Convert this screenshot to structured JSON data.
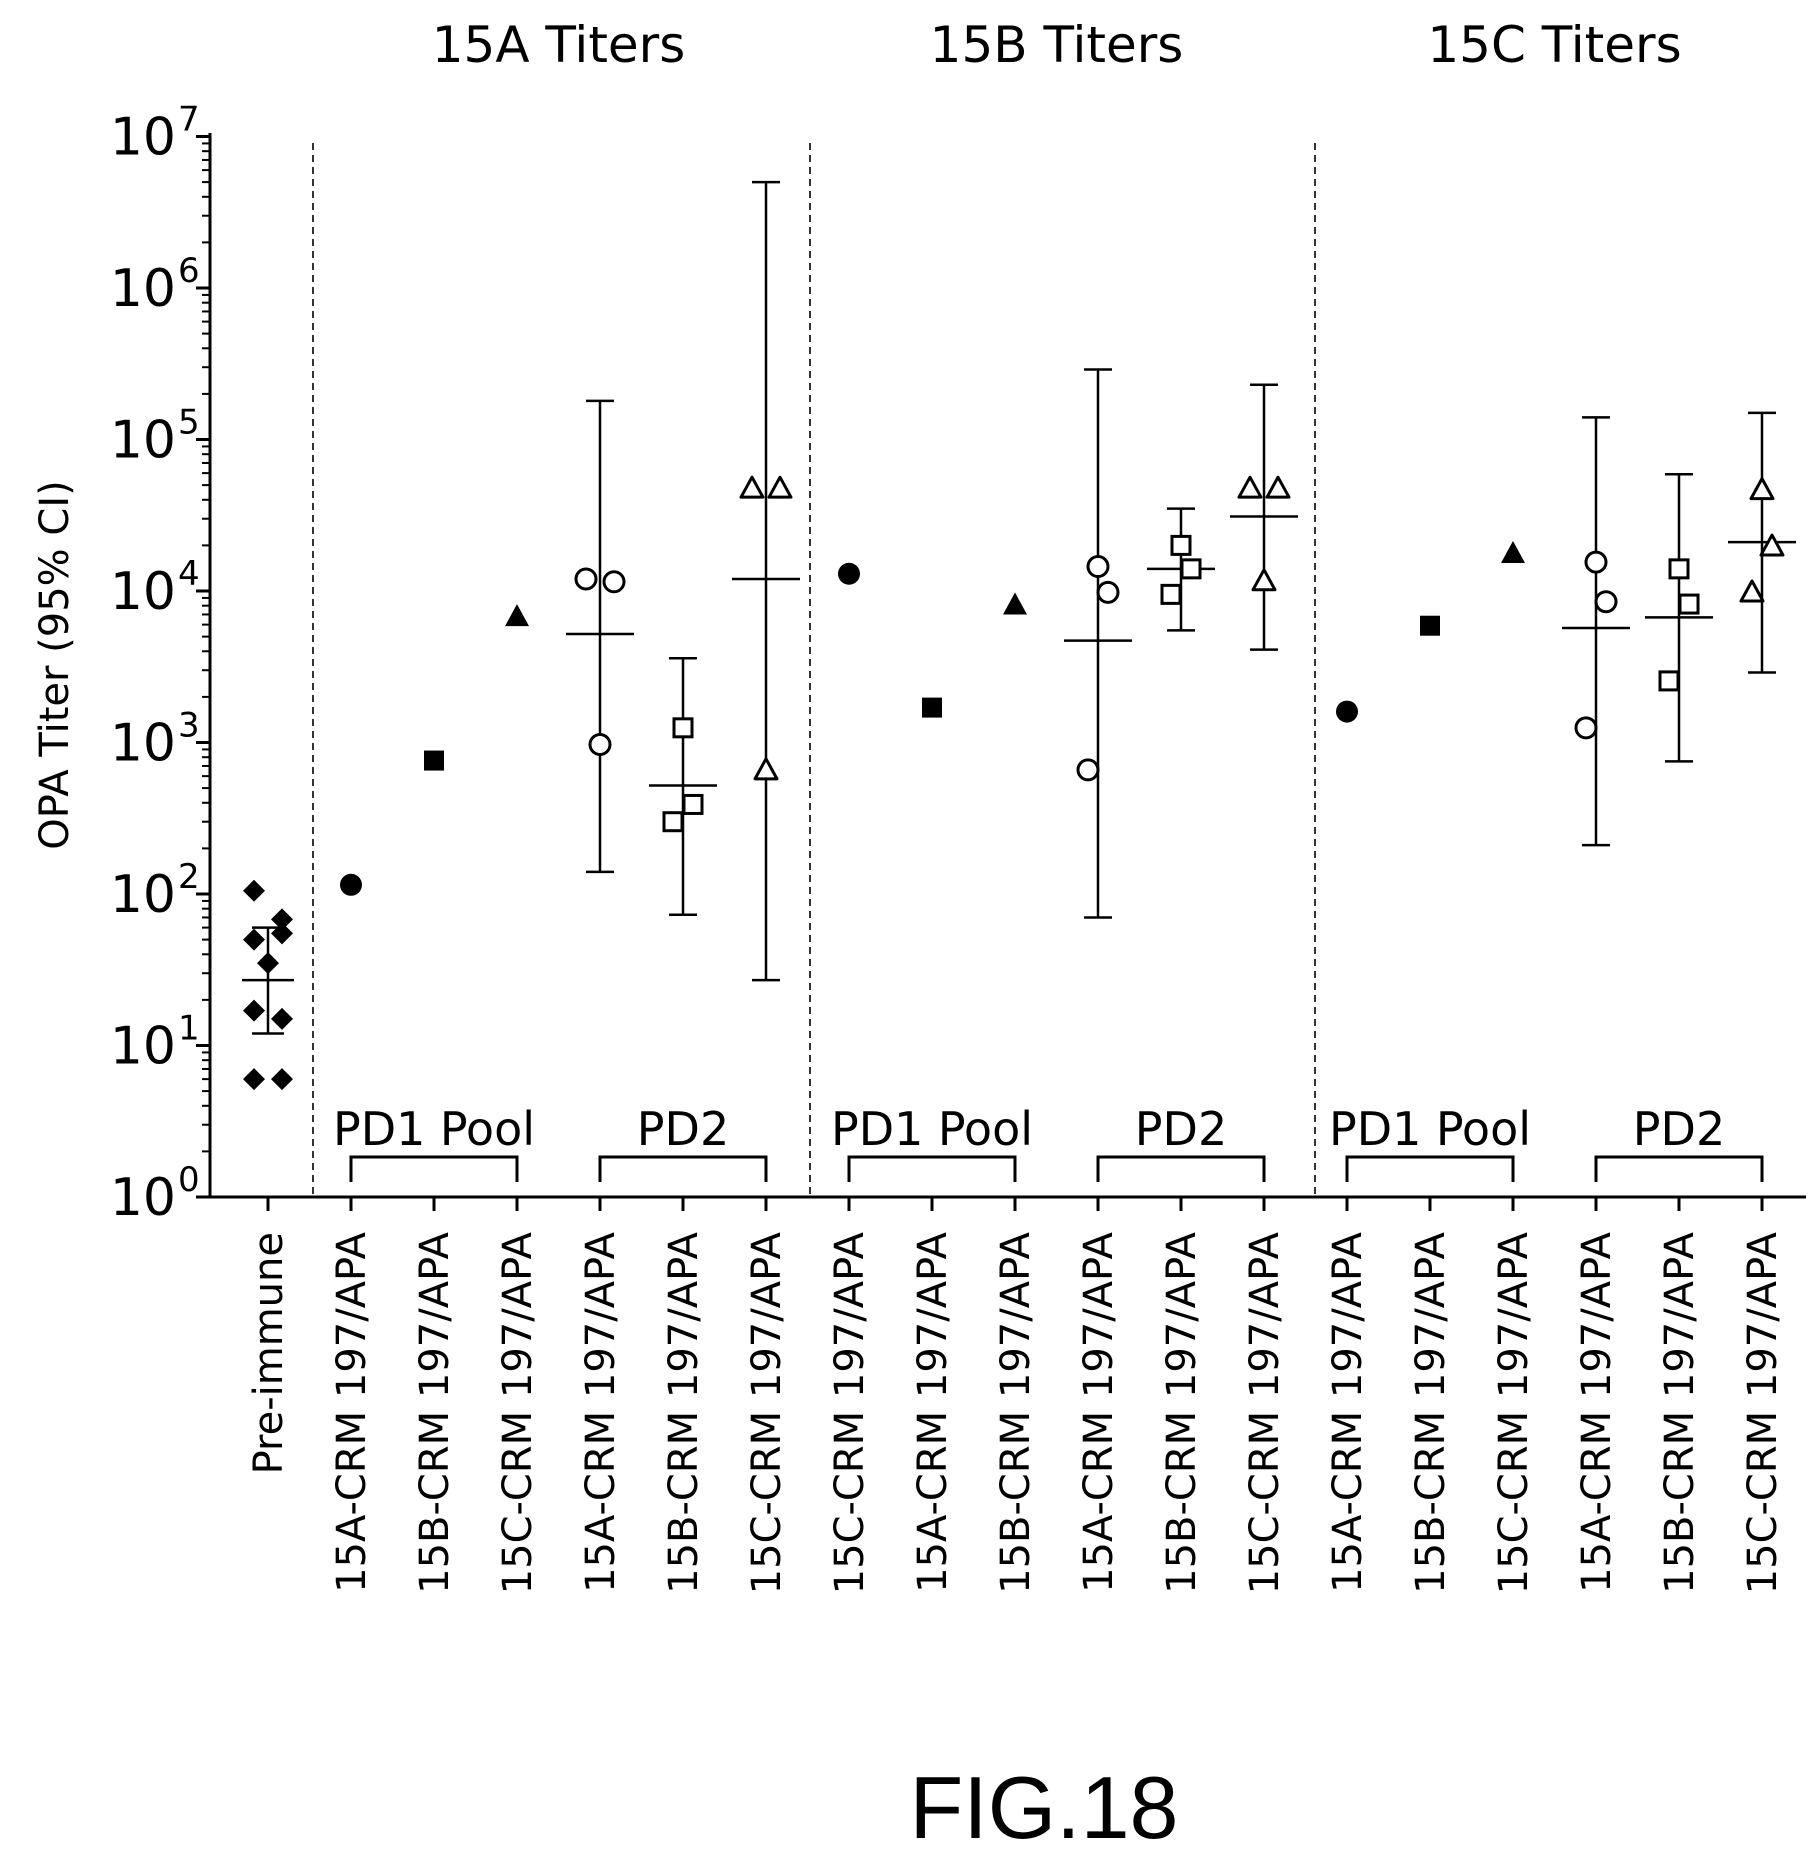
{
  "chart_data": {
    "type": "scatter",
    "y_scale": "log10",
    "ylim": [
      1,
      10000000
    ],
    "ylabel": "OPA Titer (95% CI)",
    "y_tick_labels": [
      {
        "base": "10",
        "exp": "0"
      },
      {
        "base": "10",
        "exp": "1"
      },
      {
        "base": "10",
        "exp": "2"
      },
      {
        "base": "10",
        "exp": "3"
      },
      {
        "base": "10",
        "exp": "4"
      },
      {
        "base": "10",
        "exp": "5"
      },
      {
        "base": "10",
        "exp": "6"
      },
      {
        "base": "10",
        "exp": "7"
      }
    ],
    "panels": [
      {
        "title": "15A Titers",
        "pd1_label": "PD1",
        "pool_label": "Pool",
        "pd2_label": "PD2"
      },
      {
        "title": "15B Titers",
        "pd1_label": "PD1",
        "pool_label": "Pool",
        "pd2_label": "PD2"
      },
      {
        "title": "15C Titers",
        "pd1_label": "PD1",
        "pool_label": "Pool",
        "pd2_label": "PD2"
      }
    ],
    "categories": [
      "Pre-immune",
      "15A-CRM 197/APA",
      "15B-CRM 197/APA",
      "15C-CRM 197/APA",
      "15A-CRM 197/APA",
      "15B-CRM 197/APA",
      "15C-CRM 197/APA",
      "15C-CRM 197/APA",
      "15A-CRM 197/APA",
      "15B-CRM 197/APA",
      "15A-CRM 197/APA",
      "15B-CRM 197/APA",
      "15C-CRM 197/APA",
      "15A-CRM 197/APA",
      "15B-CRM 197/APA",
      "15C-CRM 197/APA",
      "15A-CRM 197/APA",
      "15B-CRM 197/APA",
      "15C-CRM 197/APA"
    ],
    "groups": [
      {
        "index": 0,
        "marker": "diamond-filled",
        "values": [
          105,
          68,
          55,
          50,
          35,
          17,
          15,
          6,
          6
        ],
        "geomean": 27,
        "ci": [
          12,
          60
        ]
      },
      {
        "index": 1,
        "marker": "circle-filled",
        "values": [
          115
        ]
      },
      {
        "index": 2,
        "marker": "square-filled",
        "values": [
          760
        ]
      },
      {
        "index": 3,
        "marker": "triangle-filled",
        "values": [
          6700
        ]
      },
      {
        "index": 4,
        "marker": "circle-open",
        "values": [
          12000,
          11500,
          970
        ],
        "geomean": 5200,
        "ci": [
          140,
          180000
        ]
      },
      {
        "index": 5,
        "marker": "square-open",
        "values": [
          1250,
          390,
          300
        ],
        "geomean": 520,
        "ci": [
          73,
          3600
        ]
      },
      {
        "index": 6,
        "marker": "triangle-open",
        "values": [
          47000,
          47000,
          650
        ],
        "geomean": 12000,
        "ci": [
          27,
          5000000
        ]
      },
      {
        "index": 7,
        "marker": "circle-filled",
        "values": [
          13000
        ]
      },
      {
        "index": 8,
        "marker": "square-filled",
        "values": [
          1700
        ]
      },
      {
        "index": 9,
        "marker": "triangle-filled",
        "values": [
          8000
        ]
      },
      {
        "index": 10,
        "marker": "circle-open",
        "values": [
          14500,
          9800,
          660
        ],
        "geomean": 4700,
        "ci": [
          70,
          290000
        ]
      },
      {
        "index": 11,
        "marker": "square-open",
        "values": [
          20000,
          14000,
          9500
        ],
        "geomean": 14000,
        "ci": [
          5500,
          35000
        ]
      },
      {
        "index": 12,
        "marker": "triangle-open",
        "values": [
          47000,
          47000,
          11500
        ],
        "geomean": 31000,
        "ci": [
          4100,
          230000
        ]
      },
      {
        "index": 13,
        "marker": "circle-filled",
        "values": [
          1600
        ]
      },
      {
        "index": 14,
        "marker": "square-filled",
        "values": [
          5900
        ]
      },
      {
        "index": 15,
        "marker": "triangle-filled",
        "values": [
          17500
        ]
      },
      {
        "index": 16,
        "marker": "circle-open",
        "values": [
          15500,
          8500,
          1250
        ],
        "geomean": 5700,
        "ci": [
          210,
          140000
        ]
      },
      {
        "index": 17,
        "marker": "square-open",
        "values": [
          14000,
          8200,
          2550
        ],
        "geomean": 6700,
        "ci": [
          750,
          59000
        ]
      },
      {
        "index": 18,
        "marker": "triangle-open",
        "values": [
          46000,
          19500,
          9700
        ],
        "geomean": 21000,
        "ci": [
          2900,
          150000
        ]
      }
    ]
  },
  "figure_label": "FIG.18"
}
